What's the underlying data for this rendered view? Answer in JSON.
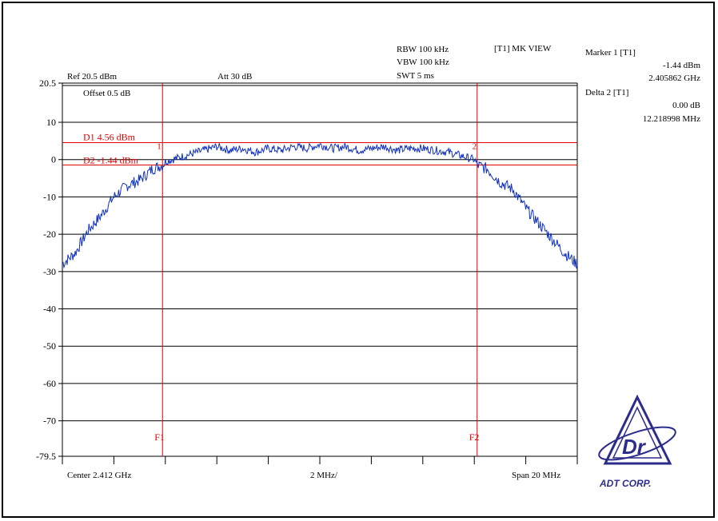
{
  "header": {
    "ref_level": "Ref 20.5 dBm",
    "attenuation": "Att  30 dB",
    "rbw": "RBW 100 kHz",
    "vbw": "VBW 100 kHz",
    "sweep_time": "SWT 5 ms",
    "mode": "[T1] MK VIEW"
  },
  "offset_label": "Offset 0.5 dB",
  "markers": {
    "marker1_title": "Marker 1 [T1]",
    "marker1_level": "-1.44 dBm",
    "marker1_freq": "2.405862 GHz",
    "delta2_title": "Delta 2 [T1]",
    "delta2_level": "0.00 dB",
    "delta2_freq": "12.218998 MHz"
  },
  "display_lines": {
    "d1_label": "D1 4.56 dBm",
    "d2_label": "D2 -1.44 dBm",
    "d1_value": 4.56,
    "d2_value": -1.44,
    "f1_label": "F1",
    "f2_label": "F2",
    "marker1_num": "1",
    "marker2_num": "2",
    "line_color": "#e00000"
  },
  "bottom": {
    "center": "Center 2.412 GHz",
    "per_div": "2 MHz/",
    "span": "Span 20 MHz"
  },
  "logo": {
    "text": "ADT CORP.",
    "mark": "Dr",
    "color": "#2c2c8c"
  },
  "chart_data": {
    "type": "line",
    "x_label_unit": "MHz offset from center",
    "xlim": [
      -10,
      10
    ],
    "ylim": [
      -79.5,
      20.5
    ],
    "y_ticks": [
      20.5,
      10,
      0,
      -10,
      -20,
      -30,
      -40,
      -50,
      -60,
      -70,
      -79.5
    ],
    "y_tick_labels": [
      "20.5",
      "10",
      "0",
      "-10",
      "-20",
      "-30",
      "-40",
      "-50",
      "-60",
      "-70",
      "-79.5"
    ],
    "f1_freq_offset": -6.11,
    "f2_freq_offset": 6.11,
    "marker1": {
      "x": -6.11,
      "y": -1.44
    },
    "marker2": {
      "x": 6.11,
      "y": -1.44
    },
    "trace_color": "#1030c0",
    "series": [
      {
        "x": [
          -10,
          -9.5,
          -9,
          -8.5,
          -8,
          -7.5,
          -7,
          -6.5,
          -6.11,
          -6,
          -5.5,
          -5,
          -4.5,
          -4,
          -3.5,
          -3,
          -2.5,
          -2,
          -1.5,
          -1,
          -0.5,
          0,
          0.5,
          1,
          1.5,
          2,
          2.5,
          3,
          3.5,
          4,
          4.5,
          5,
          5.5,
          6,
          6.11,
          6.5,
          7,
          7.5,
          8,
          8.5,
          9,
          9.5,
          10
        ],
        "y": [
          -28,
          -25,
          -19,
          -15,
          -10,
          -7,
          -5.5,
          -2.5,
          -1.44,
          -0.5,
          0.5,
          1.5,
          2.5,
          3.5,
          2.5,
          3,
          2,
          3,
          2.5,
          3.5,
          3,
          4,
          3,
          3.5,
          2.5,
          3,
          3.5,
          2.5,
          3,
          3,
          2.5,
          2,
          1,
          0,
          -1.44,
          -2.5,
          -6,
          -8,
          -13,
          -17,
          -21,
          -25,
          -28
        ]
      }
    ]
  }
}
